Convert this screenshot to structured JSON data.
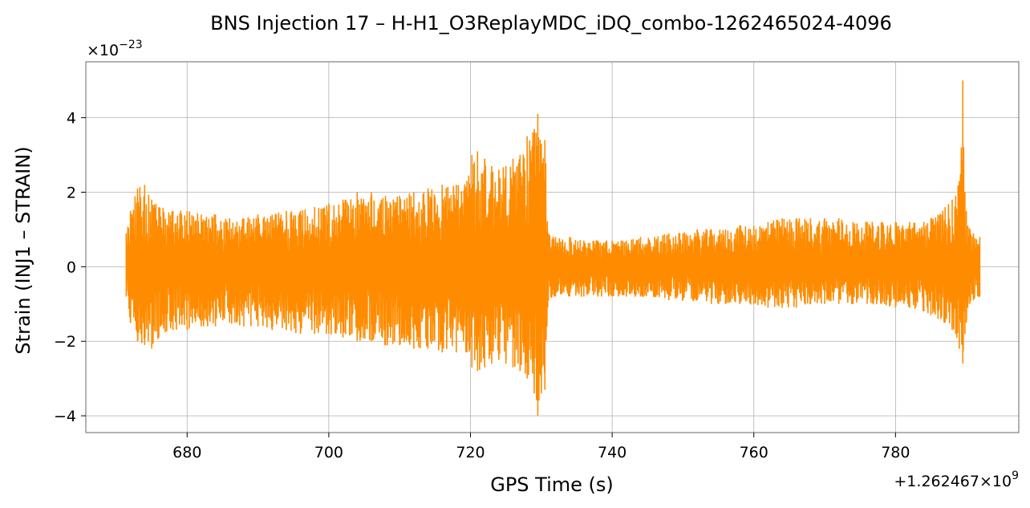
{
  "chart_data": {
    "type": "line",
    "title": "BNS Injection 17 – H-H1_O3ReplayMDC_iDQ_combo-1262465024-4096",
    "xlabel": "GPS Time (s)",
    "ylabel": "Strain (INJ1 – STRAIN)",
    "x_offset_label": "+1.262467×10",
    "x_offset_exponent": "9",
    "y_multiplier_label": "×10",
    "y_multiplier_exponent": "−23",
    "xlim": [
      1262467665.7,
      1262467797.4
    ],
    "ylim": [
      -4.45,
      5.5
    ],
    "x_ticks": [
      1262467680,
      1262467700,
      1262467720,
      1262467740,
      1262467760,
      1262467780
    ],
    "x_tick_labels": [
      "680",
      "700",
      "720",
      "740",
      "760",
      "780"
    ],
    "y_ticks": [
      -4,
      -2,
      0,
      2,
      4
    ],
    "y_tick_labels": [
      "−4",
      "−2",
      "0",
      "2",
      "4"
    ],
    "grid": true,
    "series_color": "#ff8c00",
    "series": [
      {
        "x": [
          1262467671.4,
          1262467672,
          1262467673,
          1262467674,
          1262467675,
          1262467676,
          1262467678,
          1262467680,
          1262467682,
          1262467684,
          1262467686,
          1262467688,
          1262467690,
          1262467692,
          1262467694,
          1262467696,
          1262467698,
          1262467700,
          1262467702,
          1262467704,
          1262467706,
          1262467708,
          1262467710,
          1262467712,
          1262467714,
          1262467716,
          1262467718,
          1262467719.5,
          1262467720.2,
          1262467721,
          1262467722,
          1262467723,
          1262467724,
          1262467725,
          1262467726,
          1262467727,
          1262467728,
          1262467729,
          1262467729.5,
          1262467730,
          1262467730.5,
          1262467731,
          1262467732,
          1262467734,
          1262467736,
          1262467738,
          1262467740,
          1262467742,
          1262467744,
          1262467746,
          1262467748,
          1262467750,
          1262467752,
          1262467754,
          1262467756,
          1262467758,
          1262467760,
          1262467762,
          1262467764,
          1262467766,
          1262467768,
          1262467770,
          1262467772,
          1262467774,
          1262467776,
          1262467778,
          1262467780,
          1262467782,
          1262467784,
          1262467785,
          1262467786,
          1262467787,
          1262467788,
          1262467788.5,
          1262467789,
          1262467789.5,
          1262467789.8,
          1262467790,
          1262467790.2,
          1262467790.5,
          1262467791,
          1262467791.9
        ],
        "y_max": [
          0.9,
          1.5,
          2.1,
          2.2,
          1.8,
          1.6,
          1.5,
          1.5,
          1.4,
          1.4,
          1.3,
          1.3,
          1.4,
          1.4,
          1.5,
          1.5,
          1.6,
          1.7,
          1.8,
          2.0,
          2.0,
          1.9,
          1.9,
          2.0,
          2.1,
          2.2,
          2.2,
          2.3,
          3.0,
          3.1,
          2.9,
          2.7,
          2.6,
          2.7,
          2.9,
          3.0,
          3.5,
          3.7,
          4.1,
          3.3,
          3.4,
          0.9,
          0.8,
          0.8,
          0.7,
          0.7,
          0.7,
          0.7,
          0.8,
          0.8,
          0.9,
          0.9,
          1.0,
          1.0,
          1.0,
          1.1,
          1.1,
          1.2,
          1.3,
          1.3,
          1.3,
          1.3,
          1.3,
          1.2,
          1.2,
          1.2,
          1.2,
          1.2,
          1.2,
          1.3,
          1.4,
          1.6,
          1.8,
          1.9,
          2.3,
          5.0,
          2.0,
          1.5,
          1.1,
          1.0,
          0.9,
          0.8
        ],
        "y_min": [
          -0.8,
          -1.5,
          -2.0,
          -2.1,
          -2.2,
          -1.9,
          -1.7,
          -1.7,
          -1.6,
          -1.6,
          -1.5,
          -1.6,
          -1.6,
          -1.7,
          -1.7,
          -1.8,
          -1.8,
          -1.8,
          -1.9,
          -2.0,
          -2.0,
          -2.1,
          -2.1,
          -2.2,
          -2.2,
          -2.3,
          -2.3,
          -2.3,
          -2.7,
          -2.8,
          -2.7,
          -2.6,
          -2.5,
          -2.6,
          -2.7,
          -2.8,
          -3.0,
          -3.4,
          -4.0,
          -3.4,
          -3.3,
          -0.9,
          -0.8,
          -0.8,
          -0.8,
          -0.8,
          -0.8,
          -0.8,
          -0.8,
          -0.8,
          -0.9,
          -0.9,
          -0.9,
          -1.0,
          -1.0,
          -1.0,
          -1.0,
          -1.1,
          -1.1,
          -1.1,
          -1.0,
          -1.0,
          -1.0,
          -1.0,
          -1.0,
          -1.0,
          -1.1,
          -1.1,
          -1.2,
          -1.3,
          -1.4,
          -1.5,
          -1.7,
          -1.8,
          -2.2,
          -2.6,
          -1.8,
          -1.5,
          -1.1,
          -1.0,
          -0.9,
          -0.8
        ]
      }
    ]
  }
}
